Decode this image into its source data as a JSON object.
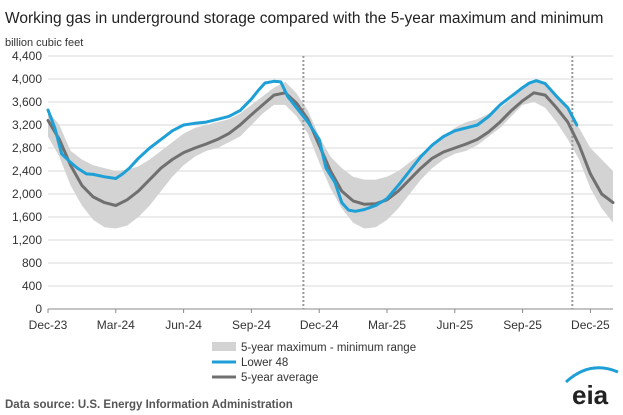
{
  "chart_data": {
    "type": "line",
    "title": "Working gas in underground storage compared with the 5-year maximum and minimum",
    "ylabel": "billion cubic feet",
    "ylim": [
      0,
      4400
    ],
    "yticks": [
      0,
      400,
      800,
      1200,
      1600,
      2000,
      2400,
      2800,
      3200,
      3600,
      4000,
      4400
    ],
    "xlim": [
      0,
      25.0
    ],
    "xticks": [
      {
        "label": "Dec-23",
        "x": 0
      },
      {
        "label": "Mar-24",
        "x": 3
      },
      {
        "label": "Jun-24",
        "x": 6
      },
      {
        "label": "Sep-24",
        "x": 9
      },
      {
        "label": "Dec-24",
        "x": 12
      },
      {
        "label": "Mar-25",
        "x": 15
      },
      {
        "label": "Jun-25",
        "x": 18
      },
      {
        "label": "Sep-25",
        "x": 21
      },
      {
        "label": "Dec-25",
        "x": 24
      }
    ],
    "vlines": [
      11.3,
      23.2
    ],
    "series": [
      {
        "name": "5-year maximum - minimum range",
        "kind": "band",
        "color": "#d3d3d3",
        "x": [
          0,
          0.5,
          1,
          1.5,
          2,
          2.5,
          3,
          3.5,
          4,
          4.5,
          5,
          5.5,
          6,
          6.5,
          7,
          7.5,
          8,
          8.5,
          9,
          9.5,
          10,
          10.5,
          11,
          11.5,
          12,
          12.5,
          13,
          13.5,
          14,
          14.5,
          15,
          15.5,
          16,
          16.5,
          17,
          17.5,
          18,
          18.5,
          19,
          19.5,
          20,
          20.5,
          21,
          21.5,
          22,
          22.5,
          23,
          23.5,
          24,
          24.5,
          25
        ],
        "max": [
          3450,
          3200,
          2750,
          2600,
          2500,
          2450,
          2400,
          2420,
          2480,
          2600,
          2750,
          2900,
          3050,
          3150,
          3200,
          3250,
          3300,
          3400,
          3550,
          3700,
          3850,
          3950,
          3750,
          3450,
          3000,
          2650,
          2450,
          2300,
          2250,
          2250,
          2300,
          2400,
          2550,
          2700,
          2850,
          3000,
          3150,
          3250,
          3300,
          3400,
          3500,
          3650,
          3850,
          3950,
          3900,
          3700,
          3450,
          3150,
          2800,
          2600,
          2400
        ],
        "min": [
          3000,
          2650,
          2150,
          1800,
          1550,
          1420,
          1400,
          1450,
          1600,
          1800,
          2050,
          2300,
          2500,
          2650,
          2750,
          2800,
          2900,
          3000,
          3200,
          3400,
          3550,
          3550,
          3350,
          3050,
          2550,
          2100,
          1750,
          1500,
          1400,
          1420,
          1550,
          1750,
          2000,
          2250,
          2450,
          2600,
          2700,
          2750,
          2850,
          3000,
          3150,
          3350,
          3550,
          3600,
          3500,
          3250,
          2950,
          2600,
          2100,
          1750,
          1500
        ]
      },
      {
        "name": "Lower 48",
        "kind": "line",
        "color": "#1ea0d7",
        "x": [
          0,
          0.3,
          0.6,
          1,
          1.3,
          1.7,
          2,
          2.5,
          3,
          3.3,
          3.6,
          4,
          4.5,
          5,
          5.5,
          6,
          6.5,
          7,
          7.5,
          8,
          8.5,
          9,
          9.3,
          9.6,
          10,
          10.3,
          10.6,
          11,
          11.5,
          12,
          12.3,
          12.7,
          13,
          13.3,
          13.6,
          14,
          14.5,
          15,
          15.5,
          16,
          16.5,
          17,
          17.5,
          18,
          18.5,
          19,
          19.5,
          20,
          20.5,
          21,
          21.3,
          21.6,
          22,
          22.5,
          23,
          23.4
        ],
        "values": [
          3460,
          3150,
          2700,
          2550,
          2450,
          2350,
          2340,
          2300,
          2270,
          2350,
          2450,
          2620,
          2800,
          2950,
          3100,
          3200,
          3230,
          3250,
          3300,
          3350,
          3450,
          3650,
          3800,
          3930,
          3960,
          3950,
          3700,
          3500,
          3250,
          2950,
          2450,
          2200,
          1850,
          1720,
          1700,
          1730,
          1800,
          1920,
          2150,
          2400,
          2650,
          2850,
          3000,
          3100,
          3150,
          3200,
          3350,
          3550,
          3700,
          3850,
          3930,
          3970,
          3920,
          3700,
          3500,
          3200
        ]
      },
      {
        "name": "5-year average",
        "kind": "line",
        "color": "#707070",
        "x": [
          0,
          0.5,
          1,
          1.5,
          2,
          2.5,
          3,
          3.5,
          4,
          4.5,
          5,
          5.5,
          6,
          6.5,
          7,
          7.5,
          8,
          8.5,
          9,
          9.5,
          10,
          10.5,
          11,
          11.5,
          12,
          12.5,
          13,
          13.5,
          14,
          14.5,
          15,
          15.5,
          16,
          16.5,
          17,
          17.5,
          18,
          18.5,
          19,
          19.5,
          20,
          20.5,
          21,
          21.5,
          22,
          22.5,
          23,
          23.5,
          24,
          24.5,
          25
        ],
        "values": [
          3280,
          2950,
          2500,
          2150,
          1950,
          1850,
          1800,
          1900,
          2050,
          2250,
          2450,
          2600,
          2720,
          2800,
          2870,
          2950,
          3050,
          3200,
          3380,
          3550,
          3720,
          3760,
          3580,
          3300,
          2850,
          2400,
          2050,
          1880,
          1820,
          1830,
          1900,
          2050,
          2250,
          2450,
          2620,
          2730,
          2800,
          2870,
          2950,
          3080,
          3250,
          3450,
          3620,
          3760,
          3720,
          3500,
          3250,
          2850,
          2350,
          2000,
          1850
        ]
      }
    ],
    "legend": [
      "5-year maximum - minimum range",
      "Lower 48",
      "5-year average"
    ]
  },
  "source": "Data source:  U.S. Energy Information Administration",
  "logo_text": "eia"
}
